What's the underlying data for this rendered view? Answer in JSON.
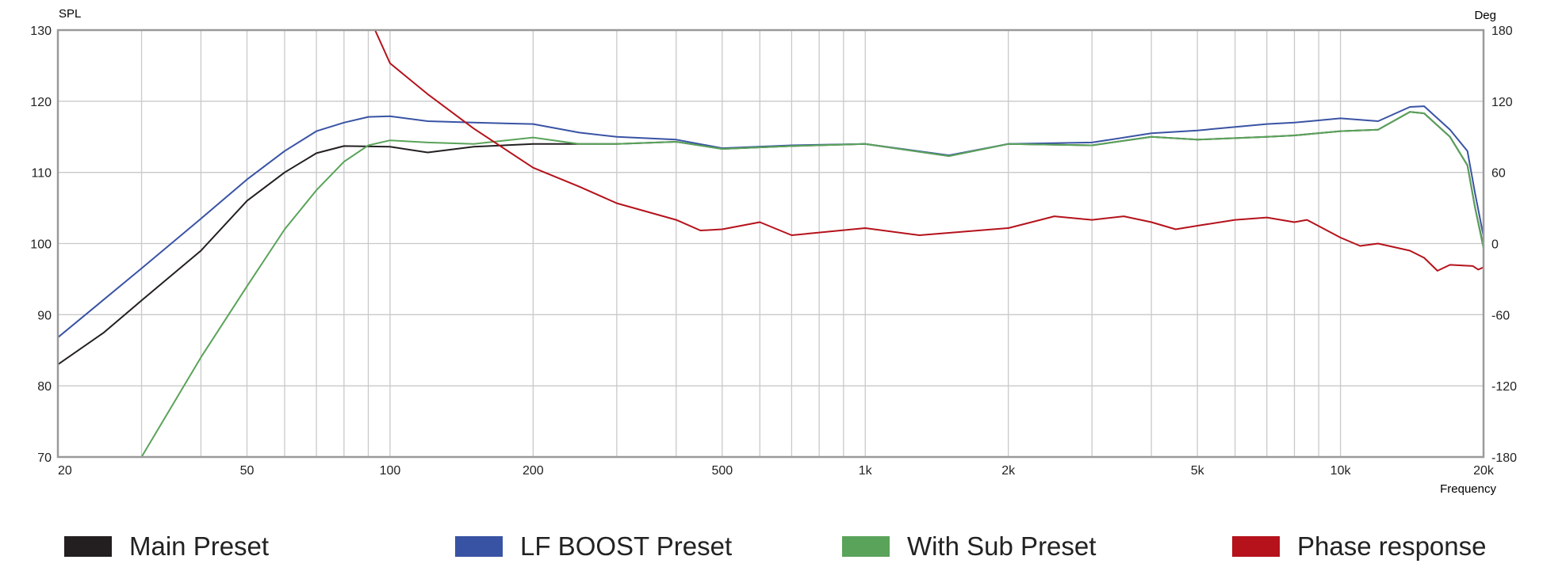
{
  "chart_data": {
    "type": "line",
    "title": "",
    "xlabel": "Frequency",
    "ylabel": "SPL",
    "y2label": "Deg",
    "xscale": "log",
    "xlim": [
      20,
      20000
    ],
    "ylim": [
      70,
      130
    ],
    "y2lim": [
      -180,
      180
    ],
    "grid": true,
    "legend_position": "bottom",
    "x_ticks": [
      {
        "v": 20,
        "label": "20"
      },
      {
        "v": 50,
        "label": "50"
      },
      {
        "v": 100,
        "label": "100"
      },
      {
        "v": 200,
        "label": "200"
      },
      {
        "v": 500,
        "label": "500"
      },
      {
        "v": 1000,
        "label": "1k"
      },
      {
        "v": 2000,
        "label": "2k"
      },
      {
        "v": 5000,
        "label": "5k"
      },
      {
        "v": 10000,
        "label": "10k"
      },
      {
        "v": 20000,
        "label": "20k"
      }
    ],
    "y_ticks": [
      "70",
      "80",
      "90",
      "100",
      "110",
      "120",
      "130"
    ],
    "y2_ticks": [
      "-180",
      "-120",
      "-60",
      "0",
      "60",
      "120",
      "180"
    ],
    "series": [
      {
        "name": "Main Preset",
        "axis": "left",
        "color": "#231f20",
        "x": [
          20,
          25,
          30,
          40,
          50,
          60,
          70,
          80,
          100,
          120,
          150,
          200,
          300,
          400,
          500,
          700,
          1000,
          1500,
          2000,
          3000,
          4000,
          5000,
          7000,
          8000,
          10000,
          12000,
          14000,
          15000,
          17000,
          18500,
          19200,
          20000
        ],
        "y": [
          83,
          87.5,
          92,
          99,
          106,
          110,
          112.7,
          113.7,
          113.6,
          112.8,
          113.6,
          114,
          114,
          114.3,
          113.3,
          113.7,
          114,
          112.3,
          114,
          113.8,
          115,
          114.6,
          115,
          115.2,
          115.8,
          116,
          118.5,
          118.3,
          115,
          111,
          105,
          99.5
        ]
      },
      {
        "name": "LF BOOST Preset",
        "axis": "left",
        "color": "#3953a4",
        "x": [
          20,
          30,
          40,
          50,
          60,
          70,
          80,
          90,
          100,
          120,
          150,
          200,
          250,
          300,
          400,
          500,
          700,
          1000,
          1500,
          2000,
          3000,
          4000,
          5000,
          7000,
          8000,
          10000,
          12000,
          14000,
          15000,
          17000,
          18500,
          19200,
          20000
        ],
        "y": [
          86.8,
          96.5,
          103.5,
          109,
          113,
          115.8,
          117,
          117.8,
          117.9,
          117.2,
          117,
          116.8,
          115.6,
          115,
          114.6,
          113.4,
          113.8,
          114,
          112.4,
          114,
          114.2,
          115.5,
          115.9,
          116.8,
          117,
          117.6,
          117.2,
          119.2,
          119.3,
          116,
          113,
          107,
          101
        ]
      },
      {
        "name": "With Sub Preset",
        "axis": "left",
        "color": "#5aa35a",
        "x": [
          30,
          40,
          50,
          60,
          70,
          80,
          90,
          100,
          120,
          150,
          200,
          250,
          300,
          400,
          500,
          700,
          1000,
          1500,
          2000,
          3000,
          4000,
          5000,
          7000,
          8000,
          10000,
          12000,
          14000,
          15000,
          17000,
          18500,
          19200,
          20000
        ],
        "y": [
          70,
          84,
          94,
          102,
          107.5,
          111.5,
          113.8,
          114.5,
          114.2,
          114,
          114.9,
          114,
          114,
          114.3,
          113.3,
          113.7,
          114,
          112.3,
          114,
          113.8,
          115,
          114.6,
          115,
          115.2,
          115.8,
          116,
          118.5,
          118.3,
          115,
          111,
          105,
          99.3
        ]
      },
      {
        "name": "Phase response",
        "axis": "right",
        "color": "#b5121b",
        "x": [
          93,
          100,
          120,
          150,
          200,
          250,
          300,
          400,
          450,
          500,
          600,
          700,
          1000,
          1300,
          2000,
          2500,
          3000,
          3500,
          4000,
          4500,
          5000,
          6000,
          7000,
          8000,
          8500,
          10000,
          11000,
          12000,
          14000,
          15000,
          16000,
          17000,
          19000,
          19500,
          20000
        ],
        "y": [
          180,
          152,
          126,
          97,
          64,
          48,
          34,
          20,
          11,
          12,
          18,
          7,
          13,
          7,
          13,
          23,
          20,
          23,
          18,
          12,
          15,
          20,
          22,
          18,
          20,
          5,
          -2,
          0,
          -6,
          -12,
          -23,
          -18,
          -19,
          -22,
          -20
        ]
      }
    ]
  }
}
